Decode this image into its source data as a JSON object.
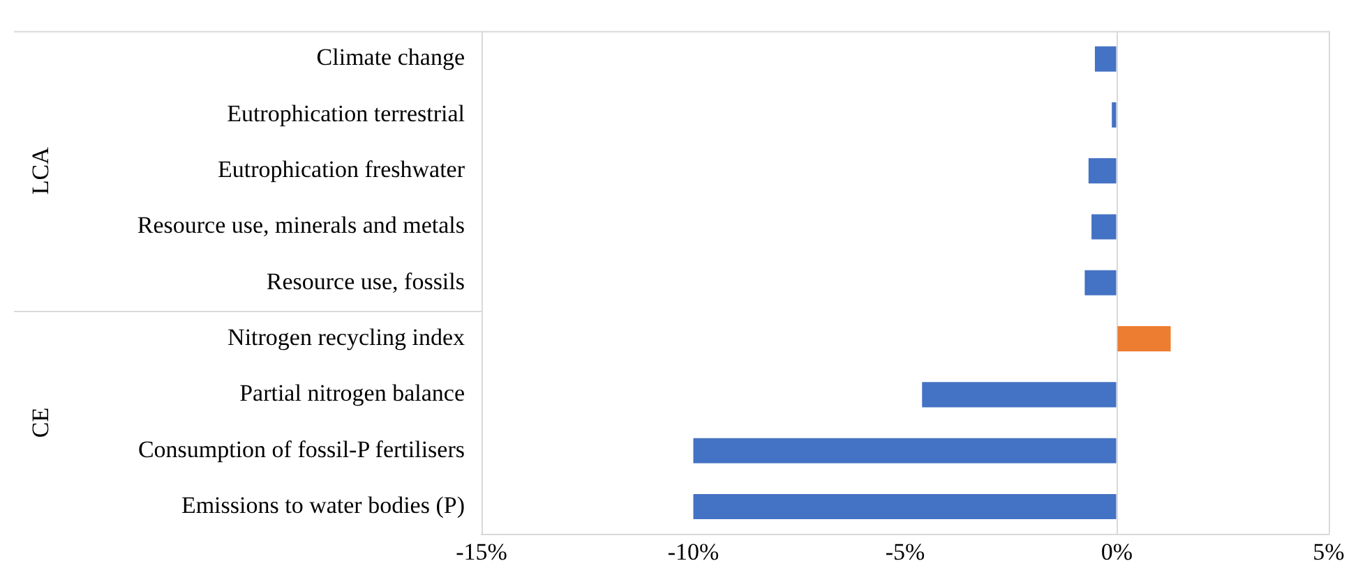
{
  "chart_data": {
    "type": "bar",
    "orientation": "horizontal",
    "categories": [
      "Climate change",
      "Eutrophication terrestrial",
      "Eutrophication freshwater",
      "Resource use, minerals and metals",
      "Resource use, fossils",
      "Nitrogen recycling index",
      "Partial nitrogen balance",
      "Consumption of fossil-P fertilisers",
      "Emissions to water bodies (P)"
    ],
    "values": [
      -0.52,
      -0.12,
      -0.67,
      -0.6,
      -0.76,
      1.27,
      -4.6,
      -10,
      -10
    ],
    "colors": [
      "#4472c4",
      "#4472c4",
      "#4472c4",
      "#4472c4",
      "#4472c4",
      "#ed7d31",
      "#4472c4",
      "#4472c4",
      "#4472c4"
    ],
    "xlim": [
      -15,
      5
    ],
    "xticks": [
      {
        "value": -15,
        "label": "-15%"
      },
      {
        "value": -10,
        "label": "-10%"
      },
      {
        "value": -5,
        "label": "-5%"
      },
      {
        "value": 0,
        "label": "0%"
      },
      {
        "value": 5,
        "label": "5%"
      }
    ],
    "annotations": [
      "LCA",
      "CE"
    ],
    "legend": false
  }
}
